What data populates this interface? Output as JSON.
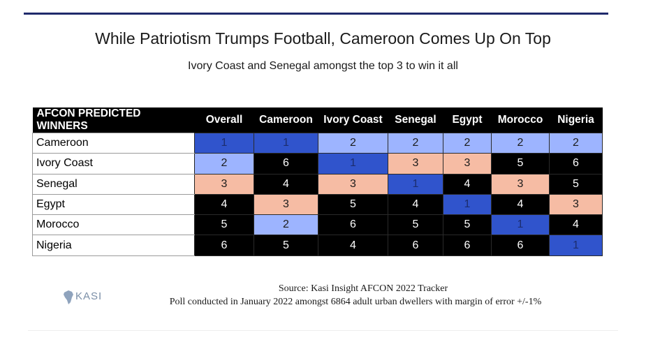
{
  "title": "While Patriotism Trumps Football, Cameroon Comes Up On Top",
  "subtitle": "Ivory Coast and Senegal amongst the top 3 to win it all",
  "chart_data": {
    "type": "table",
    "corner_header": "AFCON PREDICTED WINNERS",
    "columns": [
      "Overall",
      "Cameroon",
      "Ivory Coast",
      "Senegal",
      "Egypt",
      "Morocco",
      "Nigeria"
    ],
    "rows": [
      {
        "label": "Cameroon",
        "values": [
          "1",
          "1",
          "2",
          "2",
          "2",
          "2",
          "2"
        ]
      },
      {
        "label": "Ivory Coast",
        "values": [
          "2",
          "6",
          "1",
          "3",
          "3",
          "5",
          "6"
        ]
      },
      {
        "label": "Senegal",
        "values": [
          "3",
          "4",
          "3",
          "1",
          "4",
          "3",
          "5"
        ]
      },
      {
        "label": "Egypt",
        "values": [
          "4",
          "3",
          "5",
          "4",
          "1",
          "4",
          "3"
        ]
      },
      {
        "label": "Morocco",
        "values": [
          "5",
          "2",
          "6",
          "5",
          "5",
          "1",
          "4"
        ]
      },
      {
        "label": "Nigeria",
        "values": [
          "6",
          "5",
          "4",
          "6",
          "6",
          "6",
          "1"
        ]
      }
    ],
    "rank_colors": {
      "1": "#3054cc",
      "2": "#9db4ff",
      "3": "#f6bca4",
      "other": "#000000"
    }
  },
  "footer": {
    "logo_text": "KASI",
    "source": "Source: Kasi Insight  AFCON 2022 Tracker",
    "poll": "Poll conducted in January 2022 amongst 6864 adult urban dwellers with margin of error +/-1%"
  }
}
